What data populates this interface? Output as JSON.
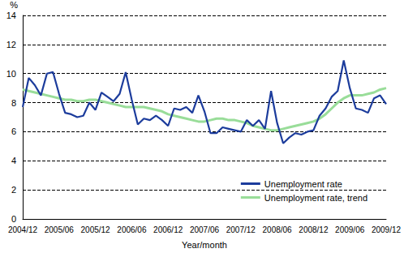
{
  "chart_data": {
    "type": "line",
    "y_label": "%",
    "x_label": "Year/month",
    "categories": [
      "2004/12",
      null,
      null,
      null,
      null,
      null,
      "2005/06",
      null,
      null,
      null,
      null,
      null,
      "2005/12",
      null,
      null,
      null,
      null,
      null,
      "2006/06",
      null,
      null,
      null,
      null,
      null,
      "2006/12",
      null,
      null,
      null,
      null,
      null,
      "2007/06",
      null,
      null,
      null,
      null,
      null,
      "2007/12",
      null,
      null,
      null,
      null,
      null,
      "2008/06",
      null,
      null,
      null,
      null,
      null,
      "2008/12",
      null,
      null,
      null,
      null,
      null,
      "2009/06",
      null,
      null,
      null,
      null,
      null,
      "2009/12"
    ],
    "series": [
      {
        "name": "Unemployment rate",
        "color": "#1c3c9c",
        "values": [
          7.7,
          9.7,
          9.2,
          8.5,
          10.0,
          10.1,
          8.6,
          7.3,
          7.2,
          7.0,
          7.1,
          8.0,
          7.5,
          8.7,
          8.4,
          8.1,
          8.6,
          10.1,
          8.2,
          6.5,
          6.9,
          6.8,
          7.1,
          6.8,
          6.4,
          7.6,
          7.5,
          7.7,
          7.3,
          8.5,
          7.4,
          5.9,
          5.9,
          6.3,
          6.2,
          6.1,
          6.0,
          6.8,
          6.4,
          6.8,
          6.2,
          8.8,
          6.6,
          5.2,
          5.6,
          5.9,
          5.8,
          6.0,
          6.1,
          7.1,
          7.6,
          8.4,
          8.8,
          10.9,
          9.0,
          7.6,
          7.5,
          7.3,
          8.3,
          8.5,
          7.9
        ]
      },
      {
        "name": "Unemployment rate, trend",
        "color": "#99dd99",
        "values": [
          8.9,
          8.8,
          8.7,
          8.6,
          8.5,
          8.4,
          8.3,
          8.2,
          8.2,
          8.1,
          8.1,
          8.2,
          8.2,
          8.1,
          8.0,
          7.9,
          7.8,
          7.7,
          7.7,
          7.7,
          7.7,
          7.6,
          7.5,
          7.4,
          7.2,
          7.1,
          7.0,
          6.9,
          6.8,
          6.7,
          6.7,
          6.8,
          6.9,
          6.9,
          6.8,
          6.8,
          6.7,
          6.6,
          6.4,
          6.3,
          6.2,
          6.1,
          6.1,
          6.2,
          6.3,
          6.4,
          6.5,
          6.6,
          6.7,
          6.9,
          7.2,
          7.6,
          8.0,
          8.3,
          8.5,
          8.5,
          8.5,
          8.6,
          8.7,
          8.9,
          9.0
        ]
      }
    ],
    "ylim": [
      0,
      14
    ],
    "yticks": [
      0,
      2,
      4,
      6,
      8,
      10,
      12,
      14
    ],
    "grid": true,
    "legend": "lower right"
  }
}
